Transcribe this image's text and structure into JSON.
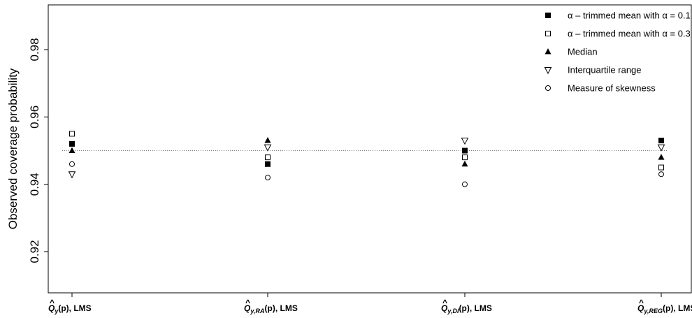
{
  "chart_data": {
    "type": "scatter",
    "title": "",
    "xlabel": "",
    "ylabel": "Observed coverage probability",
    "ylim": [
      0.906,
      1.0
    ],
    "yticks": [
      0.92,
      0.94,
      0.96,
      0.98
    ],
    "ytick_labels": [
      "0.92",
      "0.94",
      "0.96",
      "0.98"
    ],
    "reference_line": 0.95,
    "grid": false,
    "legend_position": "top-right",
    "categories": [
      {
        "base": "Q",
        "hat": "^",
        "subscript": "y",
        "suffix": "(p), LMS"
      },
      {
        "base": "Q",
        "hat": "^",
        "subscript": "y,RA",
        "suffix": "(p), LMS"
      },
      {
        "base": "Q",
        "hat": "^",
        "subscript": "y,DI",
        "suffix": "(p), LMS"
      },
      {
        "base": "Q",
        "hat": "^",
        "subscript": "y,REG",
        "suffix": "(p), LMS"
      }
    ],
    "series": [
      {
        "name": "α – trimmed mean with α = 0.1",
        "marker": "filled-square",
        "values": [
          0.952,
          0.946,
          0.95,
          0.953
        ]
      },
      {
        "name": "α – trimmed mean with α = 0.3",
        "marker": "open-square",
        "values": [
          0.955,
          0.948,
          0.948,
          0.945
        ]
      },
      {
        "name": "Median",
        "marker": "filled-triangle",
        "values": [
          0.95,
          0.953,
          0.946,
          0.948
        ]
      },
      {
        "name": "Interquartile range",
        "marker": "open-triangle-down",
        "values": [
          0.943,
          0.951,
          0.953,
          0.951
        ]
      },
      {
        "name": "Measure of skewness",
        "marker": "open-circle",
        "values": [
          0.946,
          0.942,
          0.94,
          0.943
        ]
      }
    ]
  }
}
